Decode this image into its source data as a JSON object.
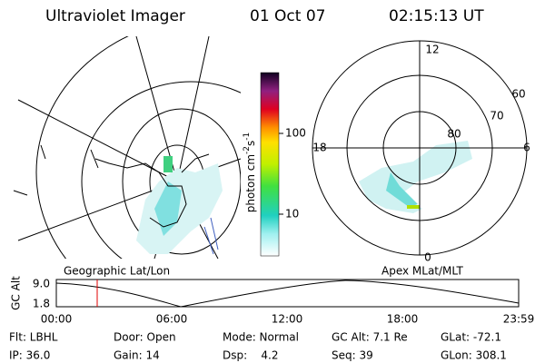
{
  "header": {
    "instrument": "Ultraviolet Imager",
    "date": "01 Oct 07",
    "time": "02:15:13 UT"
  },
  "colorbar": {
    "label_parts": [
      "photon cm",
      "-2",
      "s",
      "-1"
    ],
    "ticks": [
      "100",
      "10"
    ]
  },
  "polar_plot": {
    "labels": {
      "top": "12",
      "bottom": "0",
      "left": "18",
      "right": "6"
    },
    "rings": [
      "60",
      "70",
      "80"
    ]
  },
  "timeline": {
    "left_title": "Geographic Lat/Lon",
    "right_title": "Apex MLat/MLT",
    "axis_label": "GC Alt",
    "y_labels": [
      "9.0",
      "1.8"
    ],
    "x_labels": [
      "00:00",
      "06:00",
      "12:00",
      "18:00",
      "23:59"
    ]
  },
  "info": {
    "rows": [
      [
        "Flt: LBHL",
        "Door: Open",
        "Mode: Normal",
        "GC Alt: 7.1 Re",
        "GLat: -72.1"
      ],
      [
        "IP: 36.0",
        "Gain: 14",
        "Dsp:    4.2",
        "Seq: 39",
        "GLon: 308.1"
      ]
    ]
  }
}
